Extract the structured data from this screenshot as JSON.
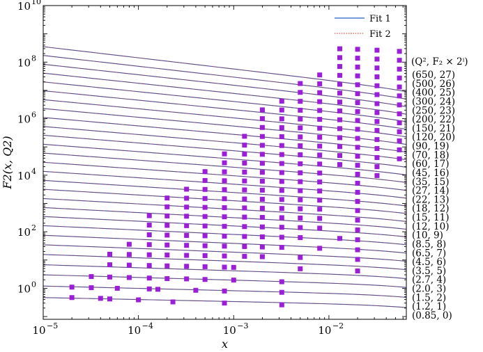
{
  "chart_data": {
    "type": "scatter",
    "xlabel": "x",
    "ylabel": "F2(x, Q2)",
    "xscale": "log",
    "yscale": "log",
    "xlim": [
      1e-05,
      0.065
    ],
    "ylim": [
      0.08,
      10000000000.0
    ],
    "x_ticks": [
      {
        "base": "10",
        "exp": "−5"
      },
      {
        "base": "10",
        "exp": "−4"
      },
      {
        "base": "10",
        "exp": "−3"
      },
      {
        "base": "10",
        "exp": "−2"
      }
    ],
    "y_ticks": [
      {
        "base": "10",
        "exp": "0"
      },
      {
        "base": "10",
        "exp": "2"
      },
      {
        "base": "10",
        "exp": "4"
      },
      {
        "base": "10",
        "exp": "6"
      },
      {
        "base": "10",
        "exp": "8"
      },
      {
        "base": "10",
        "exp": "10"
      }
    ],
    "legend": {
      "position": "top-right",
      "entries": [
        {
          "label": "Fit 1",
          "color": "#1f5fbf",
          "style": "solid"
        },
        {
          "label": "Fit 2",
          "color": "#e0251b",
          "style": "dotted"
        }
      ]
    },
    "marker_color": "#9a1fd6",
    "series_header": "(Q², F₂ × 2ⁱ)",
    "bins": [
      {
        "label": "(0.85, 0)",
        "i": 0,
        "y0": 0.47,
        "points": [
          [
            2e-05,
            0.47
          ],
          [
            4e-05,
            0.44
          ],
          [
            5e-05,
            0.42
          ],
          [
            0.0001,
            0.39
          ],
          [
            0.00023,
            0.33
          ],
          [
            0.0008,
            0.3
          ],
          [
            0.0032,
            0.26
          ]
        ]
      },
      {
        "label": "(1.2, 1)",
        "i": 1,
        "y0": 0.6,
        "points": [
          [
            2e-05,
            1.1
          ],
          [
            3.2e-05,
            1.05
          ],
          [
            6e-05,
            1.0
          ],
          [
            0.00013,
            0.95
          ],
          [
            0.00016,
            0.92
          ],
          [
            0.0004,
            0.85
          ],
          [
            0.0008,
            0.8
          ],
          [
            0.0032,
            0.72
          ]
        ]
      },
      {
        "label": "(1.5, 2)",
        "i": 2,
        "y0": 0.75,
        "points": [
          [
            3.2e-05,
            2.6
          ],
          [
            5e-05,
            2.5
          ],
          [
            8e-05,
            2.4
          ],
          [
            0.00013,
            2.3
          ],
          [
            0.0002,
            2.2
          ],
          [
            0.00032,
            2.15
          ],
          [
            0.0005,
            2.05
          ],
          [
            0.001,
            1.95
          ],
          [
            0.0032,
            1.7
          ]
        ]
      },
      {
        "label": "(2.0, 3)",
        "i": 3,
        "y0": 0.85,
        "points": [
          [
            5e-05,
            6.8
          ],
          [
            8e-05,
            6.6
          ],
          [
            0.00013,
            6.4
          ],
          [
            0.0002,
            6.2
          ],
          [
            0.00032,
            6.0
          ],
          [
            0.0005,
            5.8
          ],
          [
            0.0008,
            5.6
          ],
          [
            0.001,
            5.5
          ],
          [
            0.005,
            4.9
          ],
          [
            0.02,
            4.1
          ]
        ]
      },
      {
        "label": "(2.7, 4)",
        "i": 4,
        "y0": 0.98,
        "points": [
          [
            5e-05,
            16
          ],
          [
            8e-05,
            15.7
          ],
          [
            0.00013,
            15.3
          ],
          [
            0.0002,
            15
          ],
          [
            0.00032,
            14.6
          ],
          [
            0.0005,
            14.3
          ],
          [
            0.0008,
            13.9
          ],
          [
            0.0013,
            13.5
          ],
          [
            0.002,
            13.1
          ],
          [
            0.005,
            12.3
          ],
          [
            0.02,
            10.5
          ]
        ]
      },
      {
        "label": "(3.5, 5)",
        "i": 5,
        "y0": 1.08,
        "points": [
          [
            8e-05,
            36
          ],
          [
            0.00013,
            35
          ],
          [
            0.0002,
            34
          ],
          [
            0.00032,
            33
          ],
          [
            0.0005,
            32
          ],
          [
            0.0008,
            31
          ],
          [
            0.0013,
            30
          ],
          [
            0.002,
            29
          ],
          [
            0.0032,
            28
          ],
          [
            0.008,
            26
          ],
          [
            0.02,
            23
          ]
        ]
      },
      {
        "label": "(4.5, 6)",
        "i": 6,
        "y0": 1.17,
        "points": [
          [
            0.00013,
            78
          ],
          [
            0.0002,
            76
          ],
          [
            0.00032,
            74
          ],
          [
            0.0005,
            72
          ],
          [
            0.0008,
            70
          ],
          [
            0.0013,
            68
          ],
          [
            0.002,
            66
          ],
          [
            0.0032,
            64
          ],
          [
            0.005,
            62
          ],
          [
            0.013,
            58
          ],
          [
            0.02,
            52
          ]
        ]
      },
      {
        "label": "(6.5, 7)",
        "i": 7,
        "y0": 1.28,
        "points": [
          [
            0.00013,
            172
          ],
          [
            0.0002,
            168
          ],
          [
            0.00032,
            164
          ],
          [
            0.0005,
            160
          ],
          [
            0.0008,
            156
          ],
          [
            0.0013,
            152
          ],
          [
            0.002,
            148
          ],
          [
            0.0032,
            144
          ],
          [
            0.005,
            140
          ],
          [
            0.008,
            134
          ],
          [
            0.02,
            116
          ]
        ]
      },
      {
        "label": "(8.5, 8)",
        "i": 8,
        "y0": 1.35,
        "points": [
          [
            0.00013,
            370
          ],
          [
            0.0002,
            362
          ],
          [
            0.00032,
            354
          ],
          [
            0.0005,
            346
          ],
          [
            0.0008,
            338
          ],
          [
            0.0013,
            330
          ],
          [
            0.002,
            322
          ],
          [
            0.0032,
            314
          ],
          [
            0.005,
            306
          ],
          [
            0.008,
            296
          ],
          [
            0.02,
            258
          ]
        ]
      },
      {
        "label": "(10, 9)",
        "i": 9,
        "y0": 1.4,
        "points": [
          [
            0.0002,
            760
          ],
          [
            0.00032,
            744
          ],
          [
            0.0005,
            728
          ],
          [
            0.0008,
            712
          ],
          [
            0.0013,
            696
          ],
          [
            0.002,
            680
          ],
          [
            0.0032,
            664
          ],
          [
            0.005,
            648
          ],
          [
            0.008,
            630
          ],
          [
            0.02,
            560
          ]
        ]
      },
      {
        "label": "(12, 10)",
        "i": 10,
        "y0": 1.46,
        "points": [
          [
            0.0002,
            1560
          ],
          [
            0.00032,
            1530
          ],
          [
            0.0005,
            1500
          ],
          [
            0.0008,
            1470
          ],
          [
            0.0013,
            1440
          ],
          [
            0.002,
            1410
          ],
          [
            0.0032,
            1380
          ],
          [
            0.005,
            1350
          ],
          [
            0.008,
            1310
          ],
          [
            0.02,
            1180
          ]
        ]
      },
      {
        "label": "(15, 11)",
        "i": 11,
        "y0": 1.55,
        "points": [
          [
            0.00032,
            3200
          ],
          [
            0.0005,
            3140
          ],
          [
            0.0008,
            3080
          ],
          [
            0.0013,
            3020
          ],
          [
            0.002,
            2960
          ],
          [
            0.0032,
            2900
          ],
          [
            0.005,
            2840
          ],
          [
            0.008,
            2760
          ],
          [
            0.02,
            2480
          ]
        ]
      },
      {
        "label": "(18, 12)",
        "i": 12,
        "y0": 1.6,
        "points": [
          [
            0.0005,
            6500
          ],
          [
            0.0008,
            6380
          ],
          [
            0.0013,
            6260
          ],
          [
            0.002,
            6140
          ],
          [
            0.0032,
            6020
          ],
          [
            0.005,
            5900
          ],
          [
            0.008,
            5760
          ],
          [
            0.02,
            5200
          ]
        ]
      },
      {
        "label": "(22, 13)",
        "i": 13,
        "y0": 1.67,
        "points": [
          [
            0.0005,
            13400
          ],
          [
            0.0008,
            13150
          ],
          [
            0.0013,
            12900
          ],
          [
            0.002,
            12650
          ],
          [
            0.0032,
            12400
          ],
          [
            0.005,
            12150
          ],
          [
            0.008,
            11900
          ],
          [
            0.02,
            10800
          ],
          [
            0.032,
            9700
          ]
        ]
      },
      {
        "label": "(27, 14)",
        "i": 14,
        "y0": 1.75,
        "points": [
          [
            0.0008,
            27400
          ],
          [
            0.0013,
            26900
          ],
          [
            0.002,
            26400
          ],
          [
            0.0032,
            25900
          ],
          [
            0.005,
            25400
          ],
          [
            0.008,
            24800
          ],
          [
            0.013,
            23800
          ],
          [
            0.02,
            22400
          ],
          [
            0.032,
            20000
          ]
        ]
      },
      {
        "label": "(35, 15)",
        "i": 15,
        "y0": 1.85,
        "points": [
          [
            0.0008,
            56800
          ],
          [
            0.0013,
            55800
          ],
          [
            0.002,
            54800
          ],
          [
            0.0032,
            53800
          ],
          [
            0.005,
            52800
          ],
          [
            0.008,
            51600
          ],
          [
            0.013,
            49600
          ],
          [
            0.02,
            46800
          ],
          [
            0.032,
            42000
          ],
          [
            0.055,
            38000
          ]
        ]
      },
      {
        "label": "(45, 16)",
        "i": 16,
        "y0": 1.9,
        "points": [
          [
            0.0013,
            116000
          ],
          [
            0.002,
            114000
          ],
          [
            0.0032,
            112000
          ],
          [
            0.005,
            110000
          ],
          [
            0.008,
            107000
          ],
          [
            0.013,
            103000
          ],
          [
            0.02,
            97000
          ],
          [
            0.032,
            88000
          ],
          [
            0.055,
            79000
          ]
        ]
      },
      {
        "label": "(60, 17)",
        "i": 17,
        "y0": 1.98,
        "points": [
          [
            0.0013,
            238000
          ],
          [
            0.002,
            234000
          ],
          [
            0.0032,
            230000
          ],
          [
            0.005,
            226000
          ],
          [
            0.008,
            220000
          ],
          [
            0.013,
            212000
          ],
          [
            0.02,
            200000
          ],
          [
            0.032,
            182000
          ],
          [
            0.055,
            164000
          ]
        ]
      },
      {
        "label": "(70, 18)",
        "i": 18,
        "y0": 2.02,
        "points": [
          [
            0.002,
            488000
          ],
          [
            0.0032,
            480000
          ],
          [
            0.005,
            472000
          ],
          [
            0.008,
            460000
          ],
          [
            0.013,
            444000
          ],
          [
            0.02,
            420000
          ],
          [
            0.032,
            384000
          ],
          [
            0.055,
            344000
          ]
        ]
      },
      {
        "label": "(90, 19)",
        "i": 19,
        "y0": 2.1,
        "points": [
          [
            0.002,
            1000000
          ],
          [
            0.0032,
            985000
          ],
          [
            0.005,
            970000
          ],
          [
            0.008,
            945000
          ],
          [
            0.013,
            912000
          ],
          [
            0.02,
            864000
          ],
          [
            0.032,
            792000
          ],
          [
            0.055,
            712000
          ]
        ]
      },
      {
        "label": "(120, 20)",
        "i": 20,
        "y0": 2.18,
        "points": [
          [
            0.002,
            2050000
          ],
          [
            0.0032,
            2020000
          ],
          [
            0.005,
            1990000
          ],
          [
            0.008,
            1940000
          ],
          [
            0.013,
            1870000
          ],
          [
            0.02,
            1780000
          ],
          [
            0.032,
            1640000
          ],
          [
            0.055,
            1480000
          ]
        ]
      },
      {
        "label": "(150, 21)",
        "i": 21,
        "y0": 2.24,
        "points": [
          [
            0.0032,
            4160000
          ],
          [
            0.005,
            4100000
          ],
          [
            0.008,
            4000000
          ],
          [
            0.013,
            3860000
          ],
          [
            0.02,
            3680000
          ],
          [
            0.032,
            3400000
          ],
          [
            0.055,
            3060000
          ]
        ]
      },
      {
        "label": "(200, 22)",
        "i": 22,
        "y0": 2.32,
        "points": [
          [
            0.005,
            8500000
          ],
          [
            0.008,
            8300000
          ],
          [
            0.013,
            8020000
          ],
          [
            0.02,
            7650000
          ],
          [
            0.032,
            7080000
          ],
          [
            0.055,
            6380000
          ]
        ]
      },
      {
        "label": "(250, 23)",
        "i": 23,
        "y0": 2.38,
        "points": [
          [
            0.005,
            17500000
          ],
          [
            0.008,
            17100000
          ],
          [
            0.013,
            16500000
          ],
          [
            0.02,
            15800000
          ],
          [
            0.032,
            14600000
          ],
          [
            0.055,
            13200000
          ]
        ]
      },
      {
        "label": "(300, 24)",
        "i": 24,
        "y0": 2.43,
        "points": [
          [
            0.008,
            35200000
          ],
          [
            0.013,
            34000000
          ],
          [
            0.02,
            32600000
          ],
          [
            0.032,
            30200000
          ],
          [
            0.055,
            27400000
          ]
        ]
      },
      {
        "label": "(400, 25)",
        "i": 25,
        "y0": 2.5,
        "points": [
          [
            0.013,
            70000000
          ],
          [
            0.02,
            67000000
          ],
          [
            0.032,
            62000000
          ],
          [
            0.055,
            56500000
          ]
        ]
      },
      {
        "label": "(500, 26)",
        "i": 26,
        "y0": 2.56,
        "points": [
          [
            0.013,
            144000000
          ],
          [
            0.02,
            138000000
          ],
          [
            0.032,
            128000000
          ],
          [
            0.055,
            116000000
          ]
        ]
      },
      {
        "label": "(650, 27)",
        "i": 27,
        "y0": 2.62,
        "points": [
          [
            0.013,
            296000000
          ],
          [
            0.02,
            284000000
          ],
          [
            0.032,
            264000000
          ],
          [
            0.055,
            240000000
          ]
        ]
      }
    ]
  }
}
